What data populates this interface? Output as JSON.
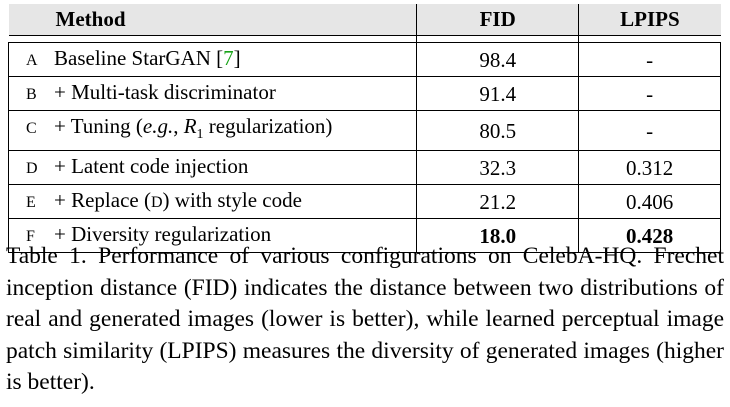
{
  "table": {
    "headers": {
      "method": "Method",
      "fid": "FID",
      "lpips": "LPIPS"
    },
    "rows": [
      {
        "id": "A",
        "method": "Baseline StarGAN [7]",
        "fid": "98.4",
        "lpips": "-"
      },
      {
        "id": "B",
        "method": "+ Multi-task discriminator",
        "fid": "91.4",
        "lpips": "-"
      },
      {
        "id": "C",
        "method": "+ Tuning (e.g., R1 regularization)",
        "fid": "80.5",
        "lpips": "-"
      },
      {
        "id": "D",
        "method": "+ Latent code injection",
        "fid": "32.3",
        "lpips": "0.312"
      },
      {
        "id": "E",
        "method": "+ Replace (D) with style code",
        "fid": "21.2",
        "lpips": "0.406"
      },
      {
        "id": "F",
        "method": "+ Diversity regularization",
        "fid": "18.0",
        "lpips": "0.428",
        "bold": true
      }
    ]
  },
  "caption": "Table 1. Performance of various configurations on CelebA-HQ. Frechet inception distance (FID) indicates the distance between two distributions of real and generated images (lower is better), while learned perceptual image patch similarity (LPIPS) measures the diversity of generated images (higher is better).",
  "colors": {
    "header_bg": "#e6e6e6",
    "citation": "#17a317"
  }
}
